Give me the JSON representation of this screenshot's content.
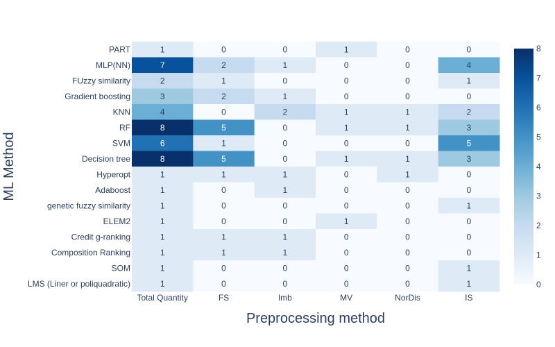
{
  "chart_data": {
    "type": "heatmap",
    "title": "",
    "xlabel": "Preprocessing method",
    "ylabel": "ML Method",
    "x": [
      "Total Quantity",
      "FS",
      "Imb",
      "MV",
      "NorDis",
      "IS"
    ],
    "y": [
      "PART",
      "MLP(NN)",
      "FUzzy similarity",
      "Gradient boosting",
      "KNN",
      "RF",
      "SVM",
      "Decision tree",
      "Hyperopt",
      "Adaboost",
      "genetic fuzzy similarity",
      "ELEM2",
      "Credit g-ranking",
      "Composition Ranking",
      "SOM",
      "LMS (Liner or poliquadratic)"
    ],
    "z": [
      [
        1,
        0,
        0,
        1,
        0,
        0
      ],
      [
        7,
        2,
        1,
        0,
        0,
        4
      ],
      [
        2,
        1,
        0,
        0,
        0,
        1
      ],
      [
        3,
        2,
        1,
        0,
        0,
        0
      ],
      [
        4,
        0,
        2,
        1,
        1,
        2
      ],
      [
        8,
        5,
        0,
        1,
        1,
        3
      ],
      [
        6,
        1,
        0,
        0,
        0,
        5
      ],
      [
        8,
        5,
        0,
        1,
        1,
        3
      ],
      [
        1,
        1,
        1,
        0,
        1,
        0
      ],
      [
        1,
        0,
        1,
        0,
        0,
        0
      ],
      [
        1,
        0,
        0,
        0,
        0,
        1
      ],
      [
        1,
        0,
        0,
        1,
        0,
        0
      ],
      [
        1,
        1,
        1,
        0,
        0,
        0
      ],
      [
        1,
        1,
        1,
        0,
        0,
        0
      ],
      [
        1,
        0,
        0,
        0,
        0,
        1
      ],
      [
        1,
        0,
        0,
        0,
        0,
        1
      ]
    ],
    "zlim": [
      0,
      8
    ],
    "colorbar": {
      "ticks": [
        0,
        1,
        2,
        3,
        4,
        5,
        6,
        7,
        8
      ],
      "labels": [
        "0",
        "1",
        "2",
        "3",
        "4",
        "5",
        "6",
        "7",
        "8"
      ],
      "placement": "right"
    },
    "colorscale": [
      "#f7fbff",
      "#deebf7",
      "#c6dbef",
      "#9ecae1",
      "#6baed6",
      "#4292c6",
      "#2171b5",
      "#08519c",
      "#08306b"
    ],
    "label_dark_color": "#2a3f5f",
    "label_light_color": "#ffffff"
  }
}
